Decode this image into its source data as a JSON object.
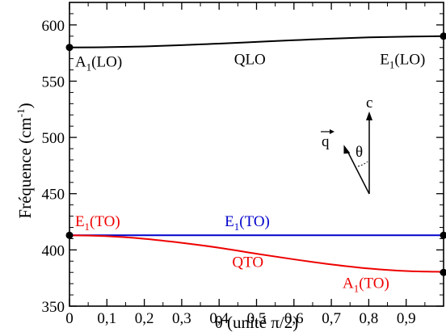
{
  "chart_data": {
    "type": "line",
    "xlabel": "θ (unité π/2)",
    "ylabel": {
      "prefix": "Fréquence (cm",
      "sup": "-1",
      "suffix": ")"
    },
    "xlim": [
      0,
      1
    ],
    "ylim": [
      350,
      620
    ],
    "x_ticks": [
      0,
      0.1,
      0.2,
      0.3,
      0.4,
      0.5,
      0.6,
      0.7,
      0.8,
      0.9
    ],
    "x_tick_labels": [
      "0",
      "0,1",
      "0,2",
      "0,3",
      "0,4",
      "0,5",
      "0,6",
      "0,7",
      "0,8",
      "0,9"
    ],
    "y_ticks": [
      350,
      400,
      450,
      500,
      550,
      600
    ],
    "y_tick_labels": [
      "350",
      "400",
      "450",
      "500",
      "550",
      "600"
    ],
    "grid": false,
    "series": [
      {
        "label": "QLO",
        "color": "#000000",
        "x": [
          0,
          0.1,
          0.2,
          0.3,
          0.4,
          0.5,
          0.6,
          0.7,
          0.8,
          0.9,
          1.0
        ],
        "y": [
          580,
          580.2,
          580.9,
          582.0,
          583.4,
          584.9,
          586.4,
          587.8,
          588.9,
          589.6,
          590
        ]
      },
      {
        "label": "E1(TO)",
        "color": "#0000cc",
        "x": [
          0,
          1.0
        ],
        "y": [
          413,
          413
        ]
      },
      {
        "label": "QTO",
        "color": "#ee0000",
        "x": [
          0,
          0.1,
          0.2,
          0.3,
          0.4,
          0.5,
          0.6,
          0.7,
          0.8,
          0.9,
          1.0
        ],
        "y": [
          413,
          412.2,
          409.9,
          406.3,
          401.9,
          396.6,
          391.6,
          387.1,
          383.5,
          381.2,
          380.5
        ]
      }
    ],
    "markers": [
      {
        "x": 0,
        "y": 580
      },
      {
        "x": 1.0,
        "y": 590
      },
      {
        "x": 0,
        "y": 413
      },
      {
        "x": 1.0,
        "y": 413
      },
      {
        "x": 1.0,
        "y": 380
      }
    ],
    "annotations": [
      {
        "id": "a1lo",
        "main": "A",
        "sub": "1",
        "rest": "(LO)",
        "color": "#000000",
        "x": 0.015,
        "y": 563
      },
      {
        "id": "qlo",
        "main": "QLO",
        "sub": "",
        "rest": "",
        "color": "#000000",
        "x": 0.44,
        "y": 565
      },
      {
        "id": "e1lo",
        "main": "E",
        "sub": "1",
        "rest": "(LO)",
        "color": "#000000",
        "x": 0.83,
        "y": 565
      },
      {
        "id": "e1to-left",
        "main": "E",
        "sub": "1",
        "rest": "(TO)",
        "color": "#ee0000",
        "x": 0.015,
        "y": 421
      },
      {
        "id": "e1to-mid",
        "main": "E",
        "sub": "1",
        "rest": "(TO)",
        "color": "#0000cc",
        "x": 0.415,
        "y": 421
      },
      {
        "id": "qto",
        "main": "QTO",
        "sub": "",
        "rest": "",
        "color": "#ee0000",
        "x": 0.435,
        "y": 385
      },
      {
        "id": "a1to",
        "main": "A",
        "sub": "1",
        "rest": "(TO)",
        "color": "#ee0000",
        "x": 0.73,
        "y": 366
      }
    ],
    "inset": {
      "c_label": "c",
      "q_label": "q",
      "theta_label": "θ"
    }
  }
}
